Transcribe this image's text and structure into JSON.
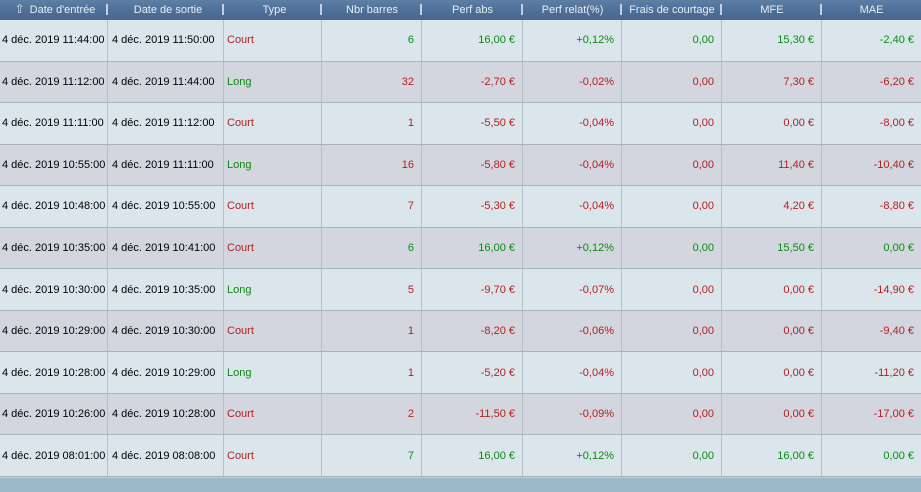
{
  "header": {
    "sort_ascending_icon": "⇧",
    "columns": [
      {
        "label": "Date d'entrée",
        "has_sort_icon": true
      },
      {
        "label": "Date de sortie",
        "has_sort_icon": false
      },
      {
        "label": "Type",
        "has_sort_icon": false
      },
      {
        "label": "Nbr barres",
        "has_sort_icon": false
      },
      {
        "label": "Perf abs",
        "has_sort_icon": false
      },
      {
        "label": "Perf relat(%)",
        "has_sort_icon": false
      },
      {
        "label": "Frais de courtage",
        "has_sort_icon": false
      },
      {
        "label": "MFE",
        "has_sort_icon": false
      },
      {
        "label": "MAE",
        "has_sort_icon": false
      }
    ]
  },
  "colors": {
    "positive_text": "#0c8a12",
    "negative_text": "#b32020",
    "header_background": "#4c6d95",
    "row_odd_background": "#dbe6ec",
    "row_even_background": "#d3d6de",
    "footer_background": "#9db9c7"
  },
  "rows": [
    {
      "cells": [
        {
          "text": "4 déc. 2019 11:44:00",
          "color": "default"
        },
        {
          "text": "4 déc. 2019 11:50:00",
          "color": "default"
        },
        {
          "text": "Court",
          "color": "red"
        },
        {
          "text": "6",
          "color": "green"
        },
        {
          "text": "16,00 €",
          "color": "green"
        },
        {
          "text": "+0,12%",
          "color": "green"
        },
        {
          "text": "0,00",
          "color": "green"
        },
        {
          "text": "15,30 €",
          "color": "green"
        },
        {
          "text": "-2,40 €",
          "color": "green"
        }
      ]
    },
    {
      "cells": [
        {
          "text": "4 déc. 2019 11:12:00",
          "color": "default"
        },
        {
          "text": "4 déc. 2019 11:44:00",
          "color": "default"
        },
        {
          "text": "Long",
          "color": "green"
        },
        {
          "text": "32",
          "color": "red"
        },
        {
          "text": "-2,70 €",
          "color": "red"
        },
        {
          "text": "-0,02%",
          "color": "red"
        },
        {
          "text": "0,00",
          "color": "red"
        },
        {
          "text": "7,30 €",
          "color": "red"
        },
        {
          "text": "-6,20 €",
          "color": "red"
        }
      ]
    },
    {
      "cells": [
        {
          "text": "4 déc. 2019 11:11:00",
          "color": "default"
        },
        {
          "text": "4 déc. 2019 11:12:00",
          "color": "default"
        },
        {
          "text": "Court",
          "color": "red"
        },
        {
          "text": "1",
          "color": "red"
        },
        {
          "text": "-5,50 €",
          "color": "red"
        },
        {
          "text": "-0,04%",
          "color": "red"
        },
        {
          "text": "0,00",
          "color": "red"
        },
        {
          "text": "0,00 €",
          "color": "red"
        },
        {
          "text": "-8,00 €",
          "color": "red"
        }
      ]
    },
    {
      "cells": [
        {
          "text": "4 déc. 2019 10:55:00",
          "color": "default"
        },
        {
          "text": "4 déc. 2019 11:11:00",
          "color": "default"
        },
        {
          "text": "Long",
          "color": "green"
        },
        {
          "text": "16",
          "color": "red"
        },
        {
          "text": "-5,80 €",
          "color": "red"
        },
        {
          "text": "-0,04%",
          "color": "red"
        },
        {
          "text": "0,00",
          "color": "red"
        },
        {
          "text": "11,40 €",
          "color": "red"
        },
        {
          "text": "-10,40 €",
          "color": "red"
        }
      ]
    },
    {
      "cells": [
        {
          "text": "4 déc. 2019 10:48:00",
          "color": "default"
        },
        {
          "text": "4 déc. 2019 10:55:00",
          "color": "default"
        },
        {
          "text": "Court",
          "color": "red"
        },
        {
          "text": "7",
          "color": "red"
        },
        {
          "text": "-5,30 €",
          "color": "red"
        },
        {
          "text": "-0,04%",
          "color": "red"
        },
        {
          "text": "0,00",
          "color": "red"
        },
        {
          "text": "4,20 €",
          "color": "red"
        },
        {
          "text": "-8,80 €",
          "color": "red"
        }
      ]
    },
    {
      "cells": [
        {
          "text": "4 déc. 2019 10:35:00",
          "color": "default"
        },
        {
          "text": "4 déc. 2019 10:41:00",
          "color": "default"
        },
        {
          "text": "Court",
          "color": "red"
        },
        {
          "text": "6",
          "color": "green"
        },
        {
          "text": "16,00 €",
          "color": "green"
        },
        {
          "text": "+0,12%",
          "color": "green"
        },
        {
          "text": "0,00",
          "color": "green"
        },
        {
          "text": "15,50 €",
          "color": "green"
        },
        {
          "text": "0,00 €",
          "color": "green"
        }
      ]
    },
    {
      "cells": [
        {
          "text": "4 déc. 2019 10:30:00",
          "color": "default"
        },
        {
          "text": "4 déc. 2019 10:35:00",
          "color": "default"
        },
        {
          "text": "Long",
          "color": "green"
        },
        {
          "text": "5",
          "color": "red"
        },
        {
          "text": "-9,70 €",
          "color": "red"
        },
        {
          "text": "-0,07%",
          "color": "red"
        },
        {
          "text": "0,00",
          "color": "red"
        },
        {
          "text": "0,00 €",
          "color": "red"
        },
        {
          "text": "-14,90 €",
          "color": "red"
        }
      ]
    },
    {
      "cells": [
        {
          "text": "4 déc. 2019 10:29:00",
          "color": "default"
        },
        {
          "text": "4 déc. 2019 10:30:00",
          "color": "default"
        },
        {
          "text": "Court",
          "color": "red"
        },
        {
          "text": "1",
          "color": "red"
        },
        {
          "text": "-8,20 €",
          "color": "red"
        },
        {
          "text": "-0,06%",
          "color": "red"
        },
        {
          "text": "0,00",
          "color": "red"
        },
        {
          "text": "0,00 €",
          "color": "red"
        },
        {
          "text": "-9,40 €",
          "color": "red"
        }
      ]
    },
    {
      "cells": [
        {
          "text": "4 déc. 2019 10:28:00",
          "color": "default"
        },
        {
          "text": "4 déc. 2019 10:29:00",
          "color": "default"
        },
        {
          "text": "Long",
          "color": "green"
        },
        {
          "text": "1",
          "color": "red"
        },
        {
          "text": "-5,20 €",
          "color": "red"
        },
        {
          "text": "-0,04%",
          "color": "red"
        },
        {
          "text": "0,00",
          "color": "red"
        },
        {
          "text": "0,00 €",
          "color": "red"
        },
        {
          "text": "-11,20 €",
          "color": "red"
        }
      ]
    },
    {
      "cells": [
        {
          "text": "4 déc. 2019 10:26:00",
          "color": "default"
        },
        {
          "text": "4 déc. 2019 10:28:00",
          "color": "default"
        },
        {
          "text": "Court",
          "color": "red"
        },
        {
          "text": "2",
          "color": "red"
        },
        {
          "text": "-11,50 €",
          "color": "red"
        },
        {
          "text": "-0,09%",
          "color": "red"
        },
        {
          "text": "0,00",
          "color": "red"
        },
        {
          "text": "0,00 €",
          "color": "red"
        },
        {
          "text": "-17,00 €",
          "color": "red"
        }
      ]
    },
    {
      "cells": [
        {
          "text": "4 déc. 2019 08:01:00",
          "color": "default"
        },
        {
          "text": "4 déc. 2019 08:08:00",
          "color": "default"
        },
        {
          "text": "Court",
          "color": "red"
        },
        {
          "text": "7",
          "color": "green"
        },
        {
          "text": "16,00 €",
          "color": "green"
        },
        {
          "text": "+0,12%",
          "color": "green"
        },
        {
          "text": "0,00",
          "color": "green"
        },
        {
          "text": "16,00 €",
          "color": "green"
        },
        {
          "text": "0,00 €",
          "color": "green"
        }
      ]
    }
  ]
}
